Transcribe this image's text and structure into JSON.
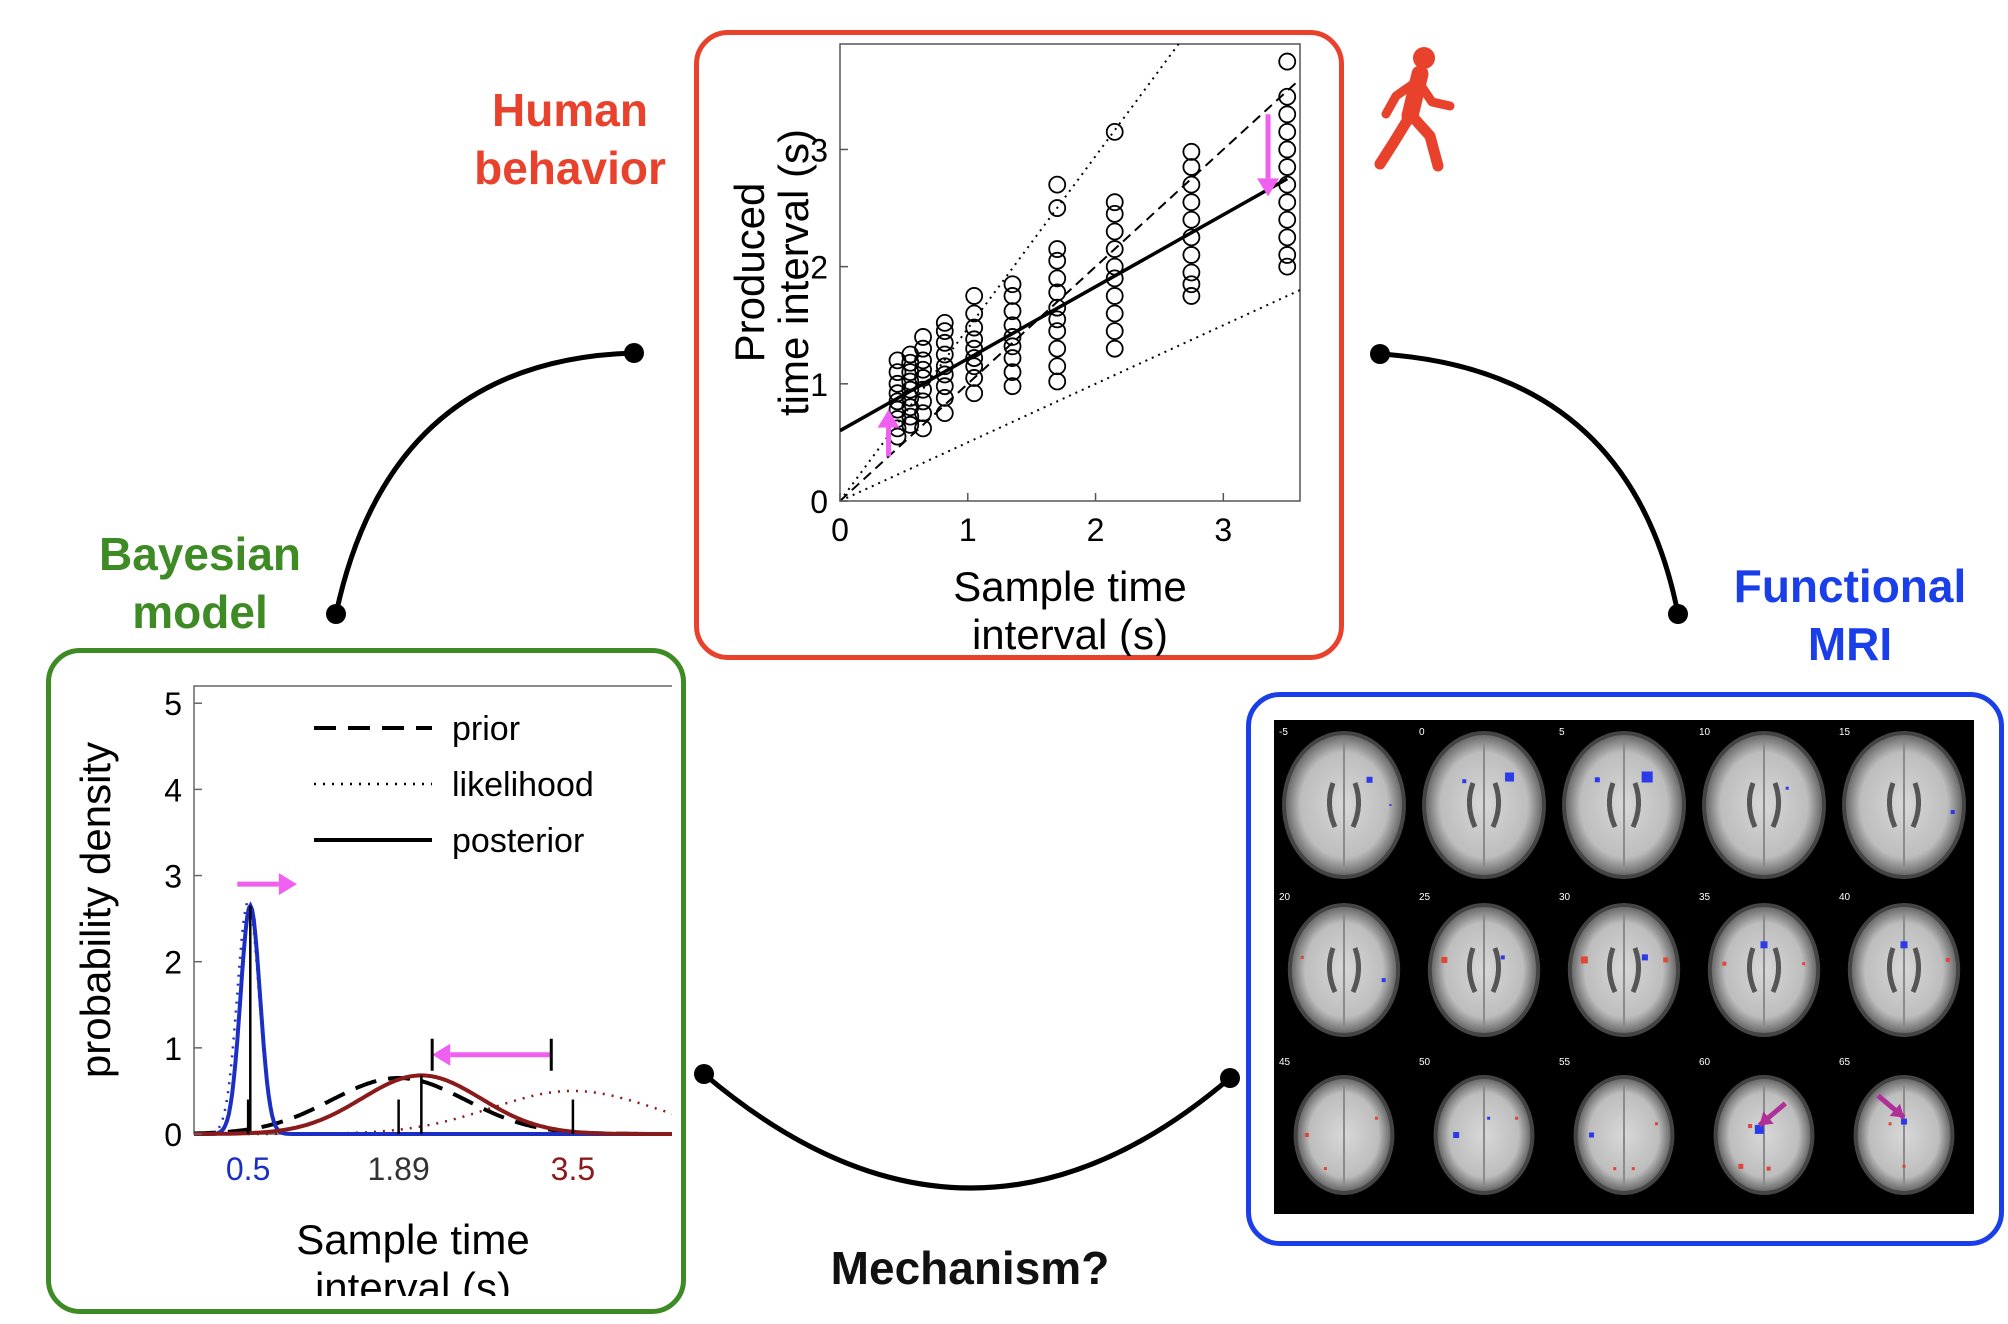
{
  "labels": {
    "human": [
      "Human",
      "behavior"
    ],
    "bayes": [
      "Bayesian",
      "model"
    ],
    "fmri": [
      "Functional",
      "MRI"
    ],
    "mechanism": "Mechanism?"
  },
  "colors": {
    "human": "#e8412c",
    "bayes": "#3e8a25",
    "fmri": "#1a3ee8",
    "arrow": "#f060f0",
    "posterior_short": "#1b2fc4",
    "posterior_long": "#8b1a1a"
  },
  "icons": {
    "person": "walking-person-icon"
  },
  "scatter_chart": {
    "type": "scatter",
    "xlabel": [
      "Sample time",
      "interval  (s)"
    ],
    "ylabel": [
      "Produced",
      "time interval (s)"
    ],
    "xlim": [
      0,
      3.6
    ],
    "ylim": [
      0,
      3.9
    ],
    "xticks": [
      "0",
      "1",
      "2",
      "3"
    ],
    "yticks": [
      "0",
      "1",
      "2",
      "3"
    ],
    "x_levels": [
      0.45,
      0.55,
      0.65,
      0.82,
      1.05,
      1.35,
      1.7,
      2.15,
      2.75,
      3.5
    ],
    "points": [
      [
        0.45,
        0.62
      ],
      [
        0.45,
        0.7
      ],
      [
        0.45,
        0.78
      ],
      [
        0.45,
        0.85
      ],
      [
        0.45,
        0.92
      ],
      [
        0.45,
        1.0
      ],
      [
        0.45,
        1.1
      ],
      [
        0.45,
        1.2
      ],
      [
        0.45,
        0.55
      ],
      [
        0.55,
        0.65
      ],
      [
        0.55,
        0.72
      ],
      [
        0.55,
        0.8
      ],
      [
        0.55,
        0.88
      ],
      [
        0.55,
        0.95
      ],
      [
        0.55,
        1.02
      ],
      [
        0.55,
        1.1
      ],
      [
        0.55,
        1.18
      ],
      [
        0.55,
        1.25
      ],
      [
        0.65,
        0.62
      ],
      [
        0.65,
        0.75
      ],
      [
        0.65,
        0.85
      ],
      [
        0.65,
        0.95
      ],
      [
        0.65,
        1.05
      ],
      [
        0.65,
        1.12
      ],
      [
        0.65,
        1.2
      ],
      [
        0.65,
        1.3
      ],
      [
        0.65,
        1.4
      ],
      [
        0.82,
        0.75
      ],
      [
        0.82,
        0.88
      ],
      [
        0.82,
        0.98
      ],
      [
        0.82,
        1.08
      ],
      [
        0.82,
        1.15
      ],
      [
        0.82,
        1.25
      ],
      [
        0.82,
        1.35
      ],
      [
        0.82,
        1.45
      ],
      [
        0.82,
        1.52
      ],
      [
        1.05,
        0.92
      ],
      [
        1.05,
        1.05
      ],
      [
        1.05,
        1.15
      ],
      [
        1.05,
        1.22
      ],
      [
        1.05,
        1.3
      ],
      [
        1.05,
        1.38
      ],
      [
        1.05,
        1.48
      ],
      [
        1.05,
        1.6
      ],
      [
        1.05,
        1.75
      ],
      [
        1.35,
        0.98
      ],
      [
        1.35,
        1.1
      ],
      [
        1.35,
        1.22
      ],
      [
        1.35,
        1.32
      ],
      [
        1.35,
        1.4
      ],
      [
        1.35,
        1.5
      ],
      [
        1.35,
        1.62
      ],
      [
        1.35,
        1.75
      ],
      [
        1.35,
        1.85
      ],
      [
        1.7,
        1.02
      ],
      [
        1.7,
        1.15
      ],
      [
        1.7,
        1.3
      ],
      [
        1.7,
        1.45
      ],
      [
        1.7,
        1.55
      ],
      [
        1.7,
        1.65
      ],
      [
        1.7,
        1.78
      ],
      [
        1.7,
        1.9
      ],
      [
        1.7,
        2.05
      ],
      [
        1.7,
        2.15
      ],
      [
        1.7,
        2.5
      ],
      [
        1.7,
        2.7
      ],
      [
        2.15,
        1.3
      ],
      [
        2.15,
        1.45
      ],
      [
        2.15,
        1.6
      ],
      [
        2.15,
        1.75
      ],
      [
        2.15,
        1.9
      ],
      [
        2.15,
        2.0
      ],
      [
        2.15,
        2.15
      ],
      [
        2.15,
        2.3
      ],
      [
        2.15,
        2.45
      ],
      [
        2.15,
        2.55
      ],
      [
        2.15,
        3.15
      ],
      [
        2.75,
        1.75
      ],
      [
        2.75,
        1.85
      ],
      [
        2.75,
        1.95
      ],
      [
        2.75,
        2.1
      ],
      [
        2.75,
        2.25
      ],
      [
        2.75,
        2.4
      ],
      [
        2.75,
        2.55
      ],
      [
        2.75,
        2.7
      ],
      [
        2.75,
        2.85
      ],
      [
        2.75,
        2.98
      ],
      [
        3.5,
        2.0
      ],
      [
        3.5,
        2.1
      ],
      [
        3.5,
        2.25
      ],
      [
        3.5,
        2.4
      ],
      [
        3.5,
        2.55
      ],
      [
        3.5,
        2.7
      ],
      [
        3.5,
        2.85
      ],
      [
        3.5,
        3.0
      ],
      [
        3.5,
        3.15
      ],
      [
        3.5,
        3.3
      ],
      [
        3.5,
        3.45
      ],
      [
        3.5,
        3.75
      ]
    ],
    "fit_line": [
      [
        0,
        0.6
      ],
      [
        3.5,
        2.75
      ]
    ],
    "identity_line": [
      [
        0,
        0
      ],
      [
        3.6,
        3.6
      ]
    ],
    "bound_upper": [
      [
        0,
        0
      ],
      [
        2.65,
        3.9
      ]
    ],
    "bound_lower": [
      [
        0,
        0
      ],
      [
        3.6,
        1.8
      ]
    ],
    "arrows": [
      {
        "x": 0.38,
        "from": 0.38,
        "to": 0.78,
        "direction": "up"
      },
      {
        "x": 3.35,
        "from": 3.3,
        "to": 2.6,
        "direction": "down"
      }
    ]
  },
  "density_chart": {
    "type": "line",
    "ylabel": "probability density",
    "xlabel": [
      "Sample time",
      "interval  (s)"
    ],
    "xlim": [
      0,
      4.6
    ],
    "ylim": [
      0,
      5.2
    ],
    "yticks": [
      "0",
      "1",
      "2",
      "3",
      "4",
      "5"
    ],
    "xtick_labels": [
      {
        "value": 0.5,
        "text": "0.5",
        "color": "#1b2fc4"
      },
      {
        "value": 1.89,
        "text": "1.89",
        "color": "#333333"
      },
      {
        "value": 3.5,
        "text": "3.5",
        "color": "#8b1a1a"
      }
    ],
    "legend": [
      "prior",
      "likelihood",
      "posterior"
    ],
    "legend_position": "top-right",
    "series": [
      {
        "name": "prior",
        "style": "dashed",
        "mean": 1.89,
        "sd": 0.62,
        "peak": 0.65
      },
      {
        "name": "likelihood",
        "style": "dotted",
        "mean": 0.5,
        "sd": 0.1,
        "peak": 2.7
      },
      {
        "name": "likelihood",
        "style": "dotted",
        "mean": 3.5,
        "sd": 0.75,
        "peak": 0.5
      },
      {
        "name": "posterior",
        "style": "solid",
        "mean": 0.52,
        "sd": 0.09,
        "peak": 2.65,
        "color": "#1b2fc4"
      },
      {
        "name": "posterior",
        "style": "solid",
        "mean": 2.1,
        "sd": 0.55,
        "peak": 0.68,
        "color": "#8b1a1a"
      }
    ],
    "arrows": [
      {
        "y": 2.9,
        "from": 0.4,
        "to": 0.95,
        "direction": "right"
      },
      {
        "y": 0.92,
        "from": 3.3,
        "to": 2.2,
        "direction": "left"
      }
    ]
  },
  "fmri": {
    "slices": [
      {
        "label": "-5"
      },
      {
        "label": "0"
      },
      {
        "label": "5"
      },
      {
        "label": "10"
      },
      {
        "label": "15"
      },
      {
        "label": "20"
      },
      {
        "label": "25"
      },
      {
        "label": "30"
      },
      {
        "label": "35"
      },
      {
        "label": "40"
      },
      {
        "label": "45"
      },
      {
        "label": "50"
      },
      {
        "label": "55"
      },
      {
        "label": "60"
      },
      {
        "label": "65"
      }
    ]
  }
}
